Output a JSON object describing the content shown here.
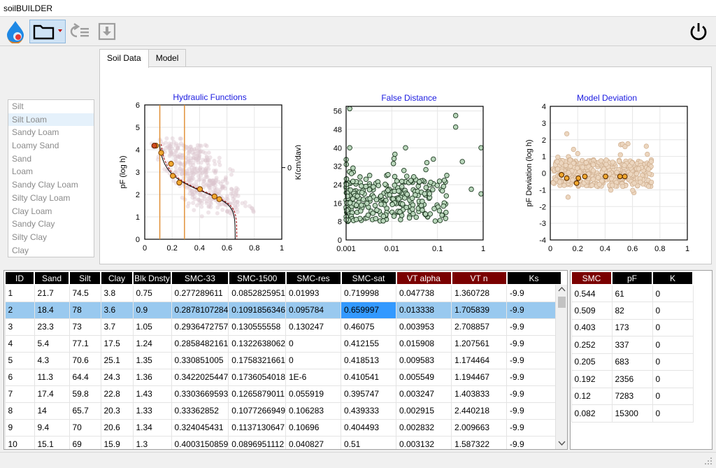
{
  "window": {
    "title": "soilBUILDER"
  },
  "toolbar": {
    "app_icon": "water-drop-logo-icon",
    "open_icon": "folder-icon",
    "undo_icon": "undo-list-icon",
    "save_icon": "download-icon",
    "power_icon": "power-icon"
  },
  "tabs": [
    {
      "label": "Soil Data"
    },
    {
      "label": "Model"
    }
  ],
  "soil_types": [
    "Silt",
    "Silt Loam",
    "Sandy Loam",
    "Loamy Sand",
    "Sand",
    "Loam",
    "Sandy Clay Loam",
    "Silty Clay Loam",
    "Clay Loam",
    "Sandy Clay",
    "Silty Clay",
    "Clay"
  ],
  "colors": {
    "accent_red": "#7a0000",
    "selection": "#99c9ef",
    "current_cell": "#3399ff",
    "title_blue": "#1a1ae0"
  },
  "chart_data": [
    {
      "type": "scatter",
      "title": "Hydraulic Functions",
      "xlabel": "",
      "ylabel": "pF (log h)",
      "y2label": "K(cm/day)",
      "xlim": [
        0,
        1
      ],
      "ylim": [
        0,
        6
      ],
      "xticks": [
        "0",
        "0.2",
        "0.4",
        "0.6",
        "0.8",
        "1"
      ],
      "yticks": [
        "0",
        "1",
        "2",
        "3",
        "4",
        "5",
        "6"
      ],
      "y2ticks": [
        "0"
      ],
      "vlines": [
        0.11,
        0.29
      ],
      "series": [
        {
          "x": [
            0.082,
            0.12,
            0.192,
            0.205,
            0.252,
            0.403,
            0.509,
            0.544
          ],
          "y": [
            4.18,
            3.86,
            3.37,
            2.83,
            2.53,
            2.24,
            1.91,
            1.79
          ]
        }
      ]
    },
    {
      "type": "scatter",
      "title": "False Distance",
      "xscale": "log",
      "xlim": [
        0.001,
        1
      ],
      "ylim": [
        0,
        58
      ],
      "xticks": [
        "0.001",
        "0.01",
        "0.1",
        "1"
      ],
      "yticks": [
        "0",
        "8",
        "16",
        "24",
        "32",
        "40",
        "48",
        "56"
      ]
    },
    {
      "type": "scatter",
      "title": "Model Deviation",
      "ylabel": "pF Deviation (log h)",
      "xlim": [
        0,
        1
      ],
      "ylim": [
        -4,
        4
      ],
      "xticks": [
        "0",
        "0.2",
        "0.4",
        "0.6",
        "0.8",
        "1"
      ],
      "yticks": [
        "-4",
        "-3",
        "-2",
        "-1",
        "0",
        "1",
        "2",
        "3",
        "4"
      ],
      "series": [
        {
          "x": [
            0.082,
            0.12,
            0.192,
            0.205,
            0.252,
            0.403,
            0.509,
            0.544
          ],
          "y": [
            -0.1,
            -0.3,
            -0.6,
            -0.3,
            -0.2,
            -0.2,
            -0.2,
            -0.2
          ]
        }
      ]
    }
  ],
  "soil_table": {
    "columns": [
      "ID",
      "Sand",
      "Silt",
      "Clay",
      "Blk Dnsty",
      "SMC-33",
      "SMC-1500",
      "SMC-res",
      "SMC-sat",
      "VT alpha",
      "VT n",
      "Ks"
    ],
    "red_columns": [
      "VT alpha",
      "VT n"
    ],
    "rows": [
      [
        "1",
        "21.7",
        "74.5",
        "3.8",
        "0.75",
        "0.277289611",
        "0.0852825951",
        "0.01993",
        "0.719998",
        "0.047738",
        "1.360728",
        "-9.9"
      ],
      [
        "2",
        "18.4",
        "78",
        "3.6",
        "0.9",
        "0.2878107284",
        "0.1091856346",
        "0.095784",
        "0.659997",
        "0.013338",
        "1.705839",
        "-9.9"
      ],
      [
        "3",
        "23.3",
        "73",
        "3.7",
        "1.05",
        "0.2936472757",
        "0.130555558",
        "0.130247",
        "0.46075",
        "0.003953",
        "2.708857",
        "-9.9"
      ],
      [
        "4",
        "5.4",
        "77.1",
        "17.5",
        "1.24",
        "0.2858482161",
        "0.1322638062",
        "0",
        "0.412155",
        "0.015908",
        "1.207561",
        "-9.9"
      ],
      [
        "5",
        "4.3",
        "70.6",
        "25.1",
        "1.35",
        "0.330851005",
        "0.1758321661",
        "0",
        "0.418513",
        "0.009583",
        "1.174464",
        "-9.9"
      ],
      [
        "6",
        "11.3",
        "64.4",
        "24.3",
        "1.36",
        "0.3422025447",
        "0.1736054018",
        "1E-6",
        "0.410541",
        "0.005549",
        "1.194467",
        "-9.9"
      ],
      [
        "7",
        "17.4",
        "59.8",
        "22.8",
        "1.43",
        "0.3303669593",
        "0.1265879011",
        "0.055919",
        "0.395747",
        "0.003247",
        "1.403833",
        "-9.9"
      ],
      [
        "8",
        "14",
        "65.7",
        "20.3",
        "1.33",
        "0.33362852",
        "0.1077266949",
        "0.106283",
        "0.439333",
        "0.002915",
        "2.440218",
        "-9.9"
      ],
      [
        "9",
        "9.4",
        "70",
        "20.6",
        "1.34",
        "0.324045431",
        "0.1137130647",
        "0.10696",
        "0.404493",
        "0.002832",
        "2.009663",
        "-9.9"
      ],
      [
        "10",
        "15.1",
        "69",
        "15.9",
        "1.3",
        "0.4003150859",
        "0.0896951112",
        "0.040827",
        "0.51",
        "0.003132",
        "1.587322",
        "-9.9"
      ]
    ],
    "selected_row": 1
  },
  "obs_table": {
    "columns": [
      "SMC",
      "pF",
      "K"
    ],
    "red_columns": [
      "SMC"
    ],
    "rows": [
      [
        "0.544",
        "61",
        "0"
      ],
      [
        "0.509",
        "82",
        "0"
      ],
      [
        "0.403",
        "173",
        "0"
      ],
      [
        "0.252",
        "337",
        "0"
      ],
      [
        "0.205",
        "683",
        "0"
      ],
      [
        "0.192",
        "2356",
        "0"
      ],
      [
        "0.12",
        "7283",
        "0"
      ],
      [
        "0.082",
        "15300",
        "0"
      ]
    ]
  }
}
